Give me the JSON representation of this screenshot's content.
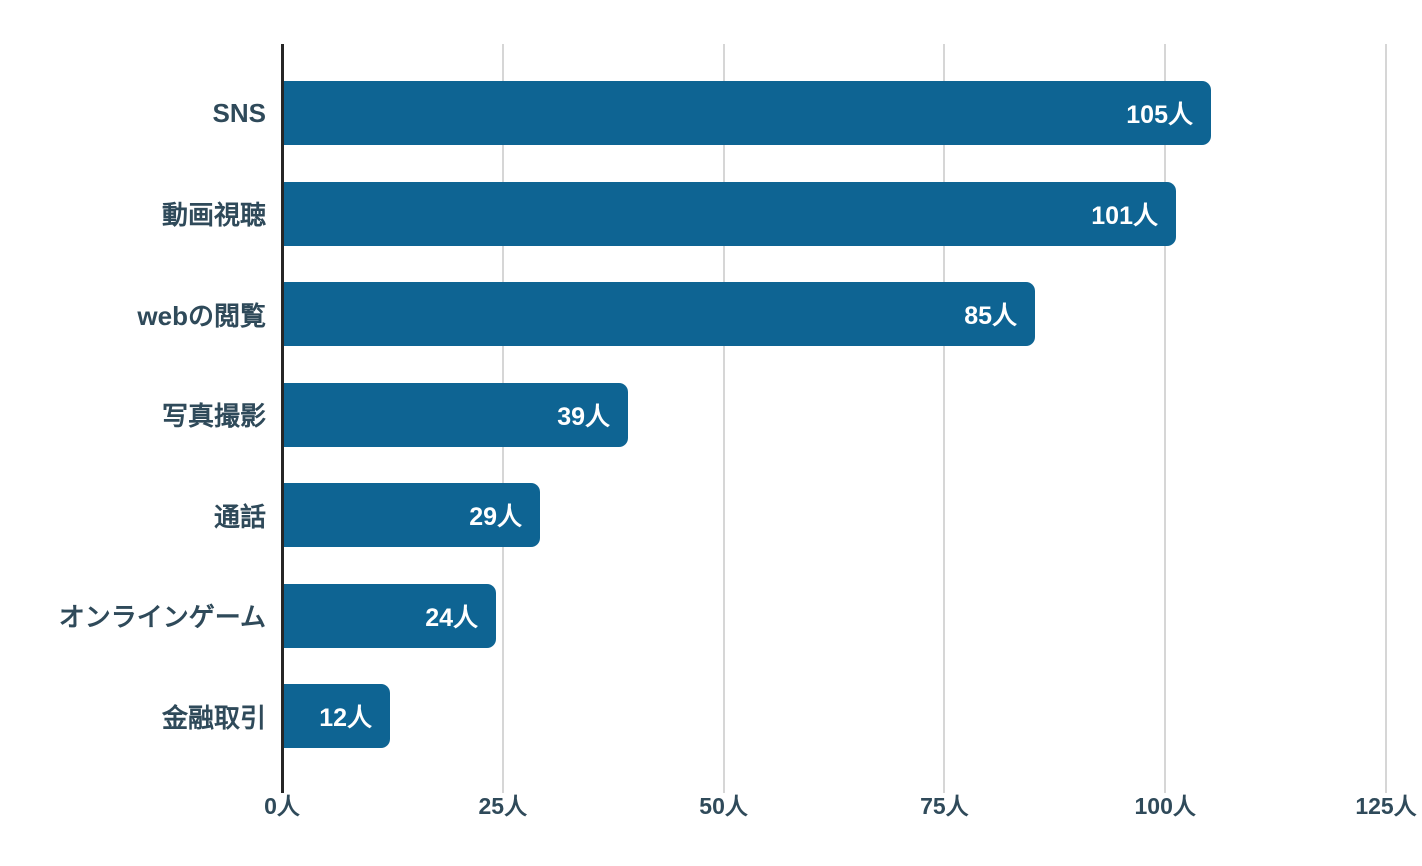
{
  "chart_data": {
    "type": "bar",
    "orientation": "horizontal",
    "title": "",
    "xlabel": "",
    "ylabel": "",
    "categories": [
      "SNS",
      "動画視聴",
      "webの閲覧",
      "写真撮影",
      "通話",
      "オンラインゲーム",
      "金融取引"
    ],
    "values": [
      105,
      101,
      85,
      39,
      29,
      24,
      12
    ],
    "value_labels": [
      "105人",
      "101人",
      "85人",
      "39人",
      "29人",
      "24人",
      "12人"
    ],
    "unit": "人",
    "xlim": [
      0,
      125
    ],
    "x_ticks": [
      0,
      25,
      50,
      75,
      100,
      125
    ],
    "x_tick_labels": [
      "0人",
      "25人",
      "50人",
      "75人",
      "100人",
      "125人"
    ],
    "grid": "vertical-only",
    "legend": "none",
    "colors": {
      "bar": "#0e6493",
      "value_label": "#ffffff",
      "category_label": "#2f4a5a",
      "tick_label": "#2f4a5a",
      "axis_line": "#262626",
      "gridline": "#d6d6d6",
      "background": "#ffffff"
    }
  }
}
